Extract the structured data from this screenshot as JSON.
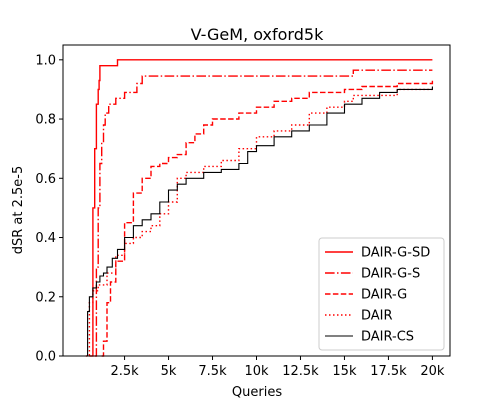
{
  "chart_data": {
    "type": "line",
    "title": "V-GeM, oxford5k",
    "xlabel": "Queries",
    "ylabel": "dSR at 2.5e-5",
    "xlim": [
      -1000,
      21000
    ],
    "ylim": [
      0,
      1.05
    ],
    "xticks": [
      2500,
      5000,
      7500,
      10000,
      12500,
      15000,
      17500,
      20000
    ],
    "xtick_labels": [
      "2.5k",
      "5k",
      "7.5k",
      "10k",
      "12.5k",
      "15k",
      "17.5k",
      "20k"
    ],
    "yticks": [
      0,
      0.2,
      0.4,
      0.6,
      0.8,
      1.0
    ],
    "ytick_labels": [
      "0.0",
      "0.2",
      "0.4",
      "0.6",
      "0.8",
      "1.0"
    ],
    "grid": false,
    "legend_position": "bottom-right",
    "series": [
      {
        "name": "DAIR-G-SD",
        "color": "#ff0000",
        "style": "solid",
        "x": [
          500,
          700,
          800,
          900,
          1000,
          1050,
          1100,
          1200,
          1500,
          2000,
          2100,
          2300,
          3000,
          20000
        ],
        "y": [
          0.0,
          0.5,
          0.7,
          0.85,
          0.9,
          0.93,
          0.98,
          0.98,
          0.98,
          0.98,
          1.0,
          1.0,
          1.0,
          1.0
        ]
      },
      {
        "name": "DAIR-G-S",
        "color": "#ff0000",
        "style": "dashdot",
        "x": [
          800,
          900,
          1000,
          1100,
          1200,
          1300,
          1400,
          1600,
          2000,
          2500,
          3000,
          3200,
          3500,
          5000,
          15000,
          15500,
          20000
        ],
        "y": [
          0.0,
          0.3,
          0.5,
          0.65,
          0.72,
          0.78,
          0.82,
          0.85,
          0.87,
          0.89,
          0.89,
          0.92,
          0.945,
          0.945,
          0.945,
          0.965,
          0.965
        ]
      },
      {
        "name": "DAIR-G",
        "color": "#ff0000",
        "style": "dashed",
        "x": [
          1200,
          1300,
          1500,
          1700,
          2000,
          2500,
          3000,
          3500,
          4000,
          4500,
          5000,
          5500,
          6000,
          6500,
          7000,
          7500,
          8000,
          9000,
          10000,
          11000,
          12000,
          13000,
          14000,
          15000,
          16000,
          17000,
          18000,
          20000
        ],
        "y": [
          0.0,
          0.05,
          0.18,
          0.25,
          0.32,
          0.45,
          0.55,
          0.6,
          0.64,
          0.65,
          0.67,
          0.68,
          0.72,
          0.75,
          0.78,
          0.8,
          0.8,
          0.82,
          0.84,
          0.86,
          0.87,
          0.89,
          0.89,
          0.9,
          0.91,
          0.91,
          0.92,
          0.93
        ]
      },
      {
        "name": "DAIR",
        "color": "#ff0000",
        "style": "dotted",
        "x": [
          300,
          500,
          700,
          1000,
          1500,
          2000,
          2500,
          3000,
          3500,
          4000,
          4500,
          5000,
          5500,
          6000,
          7000,
          8000,
          9000,
          10000,
          11000,
          12000,
          13000,
          14000,
          15000,
          15500,
          16000,
          17000,
          18000,
          20000
        ],
        "y": [
          0.0,
          0.18,
          0.22,
          0.24,
          0.28,
          0.34,
          0.38,
          0.4,
          0.42,
          0.44,
          0.48,
          0.52,
          0.6,
          0.62,
          0.64,
          0.66,
          0.7,
          0.74,
          0.76,
          0.78,
          0.82,
          0.84,
          0.86,
          0.88,
          0.88,
          0.88,
          0.9,
          0.9
        ]
      },
      {
        "name": "DAIR-CS",
        "color": "#000000",
        "style": "solid",
        "x": [
          300,
          400,
          500,
          700,
          900,
          1100,
          1300,
          1500,
          1800,
          2100,
          2500,
          3000,
          3500,
          4000,
          4500,
          5000,
          5500,
          6000,
          7000,
          8000,
          9000,
          9500,
          10000,
          11000,
          12000,
          13000,
          14000,
          15000,
          16000,
          17000,
          18000,
          20000
        ],
        "y": [
          0.0,
          0.15,
          0.2,
          0.23,
          0.25,
          0.27,
          0.28,
          0.3,
          0.33,
          0.36,
          0.4,
          0.44,
          0.46,
          0.48,
          0.52,
          0.56,
          0.58,
          0.6,
          0.62,
          0.63,
          0.65,
          0.69,
          0.71,
          0.74,
          0.76,
          0.78,
          0.82,
          0.85,
          0.87,
          0.89,
          0.9,
          0.91
        ]
      }
    ]
  }
}
